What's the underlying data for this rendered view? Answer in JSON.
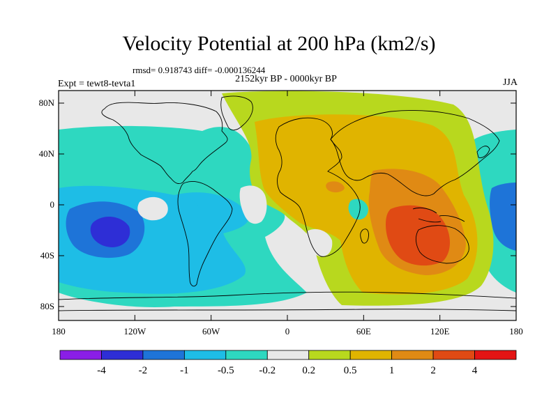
{
  "title": "Velocity Potential at 200 hPa (km2/s)",
  "stats": "rmsd= 0.918743 diff= -0.000136244",
  "period": "2152kyr BP - 0000kyr BP",
  "experiment": "Expt = tewt8-tevta1",
  "season": "JJA",
  "y_ticks": [
    "80N",
    "40N",
    "0",
    "40S",
    "80S"
  ],
  "x_ticks": [
    "180",
    "120W",
    "60W",
    "0",
    "60E",
    "120E",
    "180"
  ],
  "colorbar": {
    "labels": [
      "-4",
      "-2",
      "-1",
      "-0.5",
      "-0.2",
      "0.2",
      "0.5",
      "1",
      "2",
      "4"
    ],
    "colors": [
      "#8a1ee6",
      "#2e2ed6",
      "#1e74d8",
      "#1ebde6",
      "#2ed8c0",
      "#e8e8e8",
      "#b8d81e",
      "#e0b400",
      "#e08a14",
      "#e04a14",
      "#e41414"
    ]
  },
  "palette": {
    "neutral": "#e8e8e8",
    "pos1": "#b8d81e",
    "pos2": "#e0b400",
    "pos3": "#e08a14",
    "pos4": "#e04a14",
    "neg1": "#2ed8c0",
    "neg2": "#1ebde6",
    "neg3": "#1e74d8",
    "neg4": "#2e2ed6"
  }
}
